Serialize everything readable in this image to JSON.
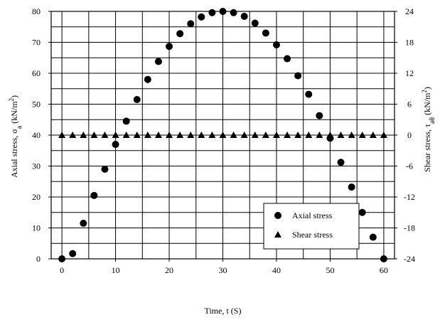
{
  "chart_data": {
    "type": "scatter",
    "title": "",
    "xlabel": "Time, t (S)",
    "ylabel": "Axial stress, σa (kN/m²)",
    "ylabel_parts": {
      "main": "Axial stress, σ",
      "sub": "a",
      "unit_open": " (kN/m",
      "sup": "2",
      "unit_close": ")"
    },
    "y2label": "Shear stress, τaθ (kN/m²)",
    "y2label_parts": {
      "main": "Shear stress, τ",
      "sub": "aθ",
      "unit_open": " (kN/m",
      "sup": "2",
      "unit_close": ")"
    },
    "xlim": [
      -2,
      62
    ],
    "ylim": [
      0,
      80
    ],
    "y2lim": [
      -24,
      24
    ],
    "xticks": [
      0,
      10,
      20,
      30,
      40,
      50,
      60
    ],
    "yticks": [
      0,
      10,
      20,
      30,
      40,
      50,
      60,
      70,
      80
    ],
    "y2ticks": [
      -24,
      -18,
      -12,
      -6,
      0,
      6,
      12,
      18,
      24
    ],
    "grid": true,
    "legend_position": "bottom-right",
    "series": [
      {
        "name": "Axial stress",
        "axis": "left",
        "marker": "circle",
        "color": "#000000",
        "x": [
          0,
          2,
          4,
          6,
          8,
          10,
          12,
          14,
          16,
          18,
          20,
          22,
          24,
          26,
          28,
          30,
          32,
          34,
          36,
          38,
          40,
          42,
          44,
          46,
          48,
          50,
          52,
          54,
          56,
          58,
          60
        ],
        "y": [
          0,
          1.7,
          11.5,
          20.5,
          29,
          37,
          44.5,
          51.5,
          58,
          63.8,
          68.7,
          72.8,
          76,
          78.2,
          79.6,
          80,
          79.6,
          78.4,
          76.2,
          73,
          69.2,
          64.7,
          59.2,
          53.2,
          46.3,
          39,
          31.2,
          23.2,
          15,
          7,
          0
        ]
      },
      {
        "name": "Shear stress",
        "axis": "right",
        "marker": "triangle",
        "color": "#000000",
        "x": [
          0,
          2,
          4,
          6,
          8,
          10,
          12,
          14,
          16,
          18,
          20,
          22,
          24,
          26,
          28,
          30,
          32,
          34,
          36,
          38,
          40,
          42,
          44,
          46,
          48,
          50,
          52,
          54,
          56,
          58,
          60
        ],
        "y": [
          0,
          0,
          0,
          0,
          0,
          0,
          0,
          0,
          0,
          0,
          0,
          0,
          0,
          0,
          0,
          0,
          0,
          0,
          0,
          0,
          0,
          0,
          0,
          0,
          0,
          0,
          0,
          0,
          0,
          0,
          0
        ]
      }
    ]
  }
}
